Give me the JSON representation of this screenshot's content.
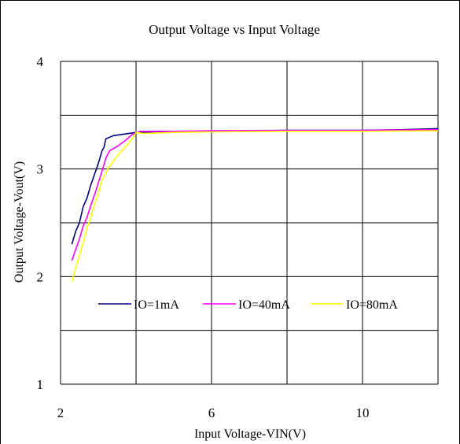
{
  "chart_data": {
    "type": "line",
    "title": "Output Voltage vs Input Voltage",
    "xlabel": "Input Voltage-VIN(V)",
    "ylabel": "Output Voltage-Vout(V)",
    "xlim": [
      2,
      12
    ],
    "ylim": [
      1,
      4
    ],
    "x_ticks": [
      2,
      6,
      10
    ],
    "y_ticks": [
      1,
      2,
      3,
      4
    ],
    "x_grid": [
      2,
      4,
      6,
      8,
      10,
      12
    ],
    "y_grid": [
      1,
      1.5,
      2,
      2.5,
      3,
      3.5,
      4
    ],
    "grid": true,
    "legend_position": "center",
    "series": [
      {
        "name": "IO=1mA",
        "color": "#000080",
        "points": [
          [
            2.3,
            2.3
          ],
          [
            2.4,
            2.42
          ],
          [
            2.5,
            2.5
          ],
          [
            2.6,
            2.65
          ],
          [
            2.7,
            2.73
          ],
          [
            2.8,
            2.85
          ],
          [
            2.9,
            2.95
          ],
          [
            3.0,
            3.05
          ],
          [
            3.1,
            3.17
          ],
          [
            3.15,
            3.2
          ],
          [
            3.2,
            3.28
          ],
          [
            3.4,
            3.31
          ],
          [
            3.6,
            3.32
          ],
          [
            3.8,
            3.33
          ],
          [
            4.0,
            3.34
          ],
          [
            4.5,
            3.345
          ],
          [
            6.0,
            3.35
          ],
          [
            8.0,
            3.36
          ],
          [
            10.0,
            3.36
          ],
          [
            11.0,
            3.365
          ],
          [
            12.0,
            3.375
          ]
        ]
      },
      {
        "name": "IO=40mA",
        "color": "#ff00ff",
        "points": [
          [
            2.3,
            2.15
          ],
          [
            2.4,
            2.25
          ],
          [
            2.5,
            2.35
          ],
          [
            2.6,
            2.47
          ],
          [
            2.7,
            2.55
          ],
          [
            2.8,
            2.66
          ],
          [
            2.9,
            2.76
          ],
          [
            3.0,
            2.87
          ],
          [
            3.1,
            2.98
          ],
          [
            3.2,
            3.1
          ],
          [
            3.3,
            3.17
          ],
          [
            3.5,
            3.21
          ],
          [
            3.7,
            3.26
          ],
          [
            3.9,
            3.32
          ],
          [
            4.1,
            3.35
          ],
          [
            5.0,
            3.35
          ],
          [
            6.0,
            3.355
          ],
          [
            8.0,
            3.36
          ],
          [
            10.0,
            3.36
          ],
          [
            12.0,
            3.365
          ]
        ]
      },
      {
        "name": "IO=80mA",
        "color": "#ffff00",
        "points": [
          [
            2.3,
            1.95
          ],
          [
            2.4,
            2.08
          ],
          [
            2.5,
            2.2
          ],
          [
            2.6,
            2.32
          ],
          [
            2.7,
            2.45
          ],
          [
            2.8,
            2.55
          ],
          [
            2.9,
            2.67
          ],
          [
            3.0,
            2.77
          ],
          [
            3.1,
            2.9
          ],
          [
            3.3,
            3.03
          ],
          [
            3.5,
            3.12
          ],
          [
            3.7,
            3.2
          ],
          [
            3.9,
            3.28
          ],
          [
            4.0,
            3.34
          ],
          [
            4.2,
            3.33
          ],
          [
            5.0,
            3.34
          ],
          [
            6.0,
            3.345
          ],
          [
            8.0,
            3.35
          ],
          [
            10.0,
            3.35
          ],
          [
            12.0,
            3.355
          ]
        ]
      }
    ]
  }
}
